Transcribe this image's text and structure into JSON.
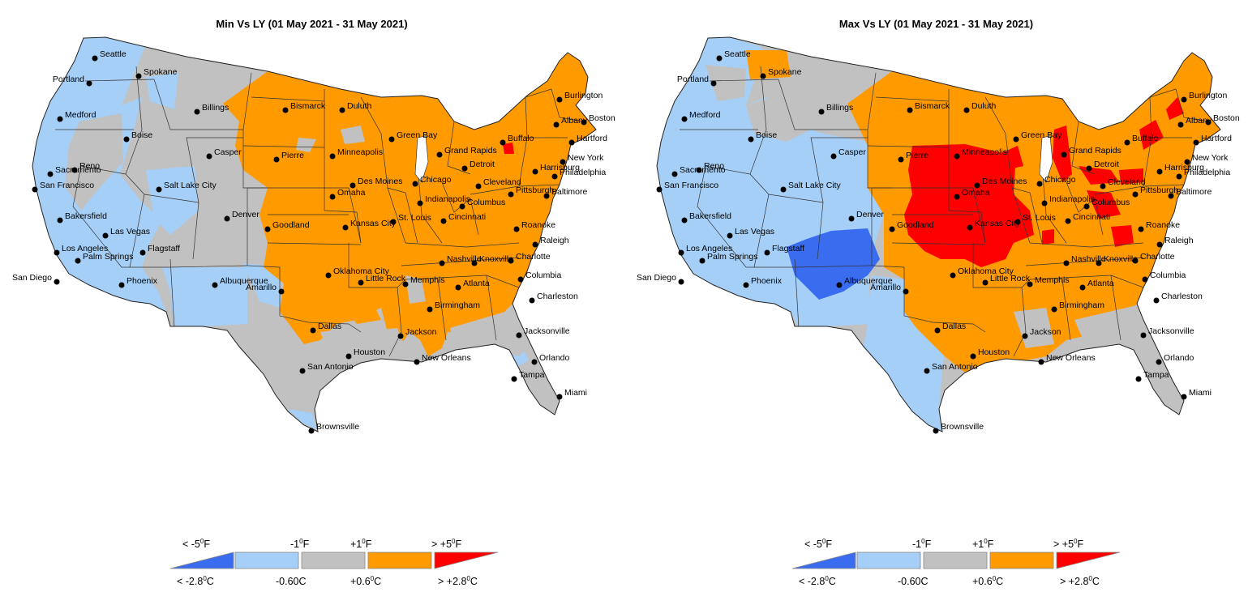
{
  "maps": [
    {
      "title": "Min Vs LY (01 May 2021 - 31 May 2021)",
      "scheme": "min"
    },
    {
      "title": "Max Vs LY (01 May 2021 - 31 May 2021)",
      "scheme": "max"
    }
  ],
  "cities": [
    "Seattle",
    "Spokane",
    "Portland",
    "Medford",
    "Boise",
    "Billings",
    "Bismarck",
    "Duluth",
    "Burlington",
    "Boston",
    "Albany",
    "Hartford",
    "New York",
    "Philadelphia",
    "Baltimore",
    "Harrisburg",
    "Buffalo",
    "Detroit",
    "Grand Rapids",
    "Green Bay",
    "Minneapolis",
    "Pierre",
    "Casper",
    "Sacramento",
    "Reno",
    "San Francisco",
    "Salt Lake City",
    "Denver",
    "Omaha",
    "Des Moines",
    "Chicago",
    "Cleveland",
    "Pittsburgh",
    "Columbus",
    "Indianapolis",
    "Cincinnati",
    "St. Louis",
    "Kansas City",
    "Goodland",
    "Bakersfield",
    "Las Vegas",
    "Los Angeles",
    "Flagstaff",
    "Palm Springs",
    "San Diego",
    "Phoenix",
    "Albuquerque",
    "Amarillo",
    "Oklahoma City",
    "Little Rock",
    "Memphis",
    "Nashville",
    "Knoxville",
    "Roanoke",
    "Raleigh",
    "Charlotte",
    "Columbia",
    "Charleston",
    "Atlanta",
    "Birmingham",
    "Jackson",
    "Dallas",
    "San Antonio",
    "Houston",
    "New Orleans",
    "Jacksonville",
    "Orlando",
    "Tampa",
    "Miami",
    "Brownsville"
  ],
  "legend": {
    "f_labels": [
      "< -5",
      "-1",
      "+1",
      "> +5"
    ],
    "f_unit": "F",
    "c_labels": [
      "< -2.8",
      "-0.60C",
      "+0.6",
      "> +2.8"
    ],
    "c_unit": "C",
    "degree_mark": "0",
    "colors": [
      "#3a6cf0",
      "#a5cff7",
      "#c1c1c1",
      "#ff9a00",
      "#ff0000"
    ]
  },
  "colors": {
    "much_below": "#3a6cf0",
    "below": "#a5cff7",
    "near": "#c1c1c1",
    "above": "#ff9a00",
    "much_above": "#ff0000",
    "state_lines": "#333333"
  }
}
